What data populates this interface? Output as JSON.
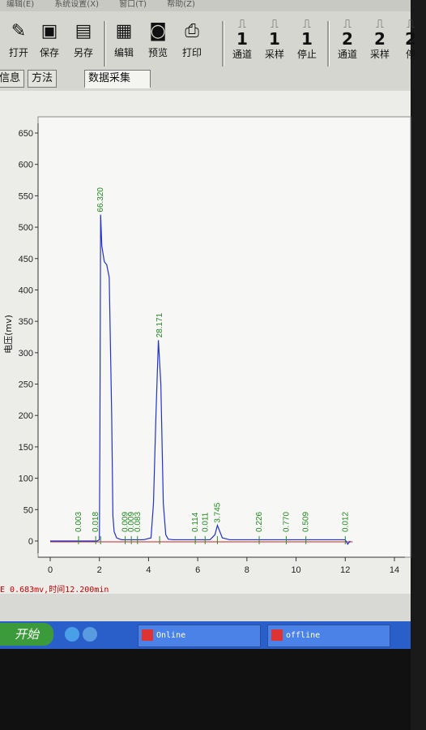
{
  "menubar": {
    "items": [
      "编辑(E)",
      "系统设置(X)",
      "窗口(T)",
      "帮助(Z)"
    ]
  },
  "toolbar": {
    "buttons": [
      {
        "label": "打开",
        "icon": "open-folder-icon",
        "glyph": "✎"
      },
      {
        "label": "保存",
        "icon": "floppy-disk-icon",
        "glyph": "▣"
      },
      {
        "label": "另存",
        "icon": "save-as-icon",
        "glyph": "▤"
      },
      {
        "label": "编辑",
        "icon": "edit-document-icon",
        "glyph": "▦"
      },
      {
        "label": "预览",
        "icon": "print-preview-icon",
        "glyph": "◙"
      },
      {
        "label": "打印",
        "icon": "printer-icon",
        "glyph": "⎙"
      }
    ],
    "channels": [
      {
        "label": "通道",
        "num": "1"
      },
      {
        "label": "采样",
        "num": "1"
      },
      {
        "label": "停止",
        "num": "1"
      },
      {
        "label": "通道",
        "num": "2"
      },
      {
        "label": "采样",
        "num": "2"
      },
      {
        "label": "停",
        "num": "2"
      }
    ]
  },
  "tabs": [
    "信息",
    "方法",
    "数据采集"
  ],
  "status": "E 0.683mv,时间12.200min",
  "taskbar": {
    "start": "开始",
    "tasks": [
      "Online",
      "offline"
    ]
  },
  "chart_data": {
    "type": "line",
    "ylabel": "电压(mv)",
    "xlabel": "",
    "xlim": [
      0,
      14.5
    ],
    "ylim": [
      0,
      650
    ],
    "xticks": [
      0,
      2,
      4,
      6,
      8,
      10,
      12,
      14
    ],
    "yticks": [
      0,
      50,
      100,
      150,
      200,
      250,
      300,
      350,
      400,
      450,
      500,
      550,
      600,
      650
    ],
    "series": [
      {
        "color": "#2233cc",
        "x": [
          0,
          1.9,
          2.0,
          2.02,
          2.05,
          2.1,
          2.2,
          2.3,
          2.4,
          2.5,
          2.55,
          2.6,
          2.7,
          2.9,
          3.2,
          3.8,
          4.1,
          4.2,
          4.3,
          4.4,
          4.5,
          4.6,
          4.7,
          4.8,
          5.0,
          5.5,
          6.5,
          6.7,
          6.8,
          6.9,
          7.0,
          7.3,
          8.0,
          12.0,
          12.1,
          12.2
        ],
        "y": [
          0,
          0,
          2,
          150,
          520,
          470,
          445,
          440,
          420,
          200,
          40,
          15,
          5,
          2,
          2,
          2,
          5,
          60,
          200,
          320,
          250,
          60,
          10,
          3,
          2,
          2,
          2,
          10,
          25,
          15,
          5,
          2,
          2,
          2,
          -5,
          0
        ]
      }
    ],
    "baseline": {
      "color": "#cc2222",
      "x": [
        0,
        14.5
      ],
      "y": [
        0,
        0
      ]
    },
    "peaks": [
      {
        "x": 1.15,
        "label": "0.003"
      },
      {
        "x": 1.85,
        "label": "0.018"
      },
      {
        "x": 2.05,
        "label": "66.320",
        "y": 520
      },
      {
        "x": 3.05,
        "label": "0.009"
      },
      {
        "x": 3.3,
        "label": "0.009"
      },
      {
        "x": 3.55,
        "label": "0.083"
      },
      {
        "x": 4.45,
        "label": "28.171",
        "y": 320
      },
      {
        "x": 5.9,
        "label": "0.114"
      },
      {
        "x": 6.3,
        "label": "0.011"
      },
      {
        "x": 6.8,
        "label": "3.745",
        "y": 25
      },
      {
        "x": 8.5,
        "label": "0.226"
      },
      {
        "x": 9.6,
        "label": "0.770"
      },
      {
        "x": 10.4,
        "label": "0.509"
      },
      {
        "x": 12.0,
        "label": "0.012"
      }
    ]
  }
}
